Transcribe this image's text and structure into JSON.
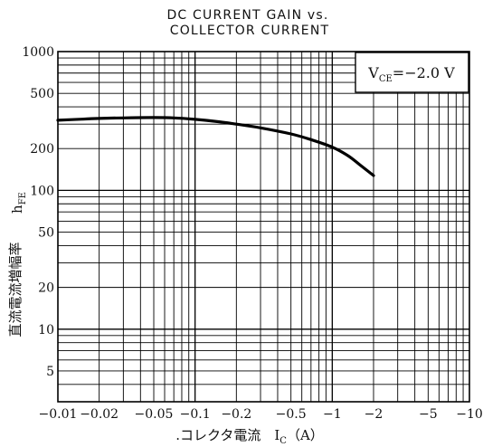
{
  "chart_data": {
    "type": "line",
    "title_lines": [
      "DC CURRENT GAIN vs.",
      "COLLECTOR CURRENT"
    ],
    "xlabel": ".コレクタ電流　I",
    "xlabel_subscript": "C",
    "xlabel_unit": "（A）",
    "ylabel_main": "h",
    "ylabel_subscript": "FE",
    "ylabel_jp": "直流電流増幅率",
    "annotation": {
      "prefix": "V",
      "subscript": "CE",
      "value": "=−2.0 V"
    },
    "x_scale": "log",
    "y_scale": "log",
    "xlim": [
      0.01,
      10
    ],
    "ylim": [
      3,
      1000
    ],
    "x_ticks": [
      {
        "value": 0.01,
        "label": "−0.01"
      },
      {
        "value": 0.02,
        "label": "−0.02"
      },
      {
        "value": 0.05,
        "label": "−0.05"
      },
      {
        "value": 0.1,
        "label": "−0.1"
      },
      {
        "value": 0.2,
        "label": "−0.2"
      },
      {
        "value": 0.5,
        "label": "−0.5"
      },
      {
        "value": 1,
        "label": "−1"
      },
      {
        "value": 2,
        "label": "−2"
      },
      {
        "value": 5,
        "label": "−5"
      },
      {
        "value": 10,
        "label": "−10"
      }
    ],
    "y_ticks": [
      {
        "value": 1000,
        "label": "1000"
      },
      {
        "value": 500,
        "label": "500"
      },
      {
        "value": 200,
        "label": "200"
      },
      {
        "value": 100,
        "label": "100"
      },
      {
        "value": 50,
        "label": "50"
      },
      {
        "value": 20,
        "label": "20"
      },
      {
        "value": 10,
        "label": "10"
      },
      {
        "value": 5,
        "label": "5"
      }
    ],
    "grid": true,
    "series": [
      {
        "x": [
          0.01,
          0.015,
          0.02,
          0.03,
          0.05,
          0.07,
          0.1,
          0.15,
          0.2,
          0.3,
          0.5,
          0.7,
          1.0,
          1.3,
          1.6,
          2.0
        ],
        "y": [
          320,
          326,
          330,
          333,
          335,
          333,
          325,
          312,
          300,
          282,
          255,
          232,
          205,
          178,
          152,
          128
        ]
      }
    ]
  }
}
